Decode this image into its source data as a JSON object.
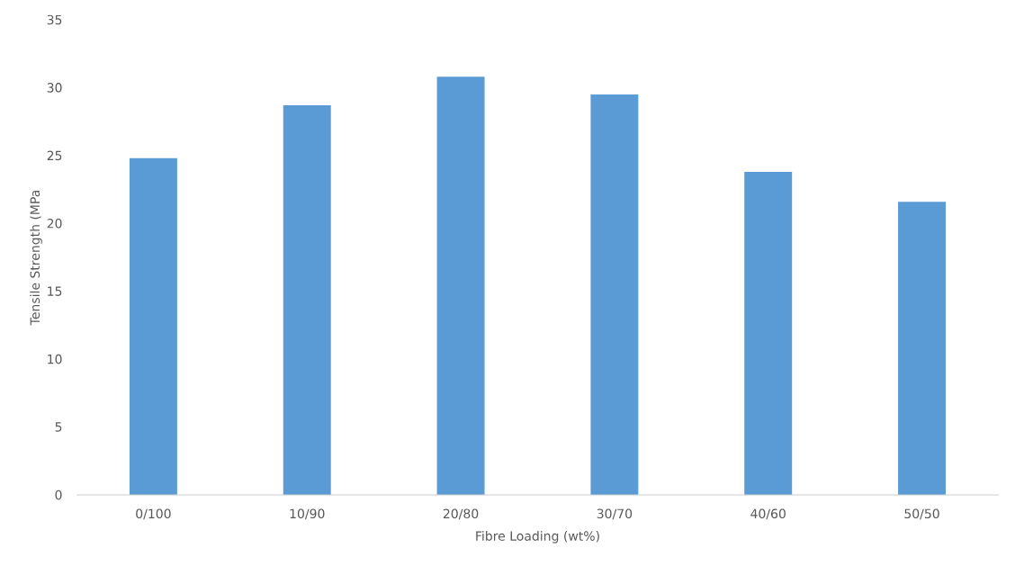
{
  "chart_data": {
    "type": "bar",
    "xlabel": "Fibre Loading (wt%)",
    "ylabel": "Tensile Strength (MPa",
    "categories": [
      "0/100",
      "10/90",
      "20/80",
      "30/70",
      "40/60",
      "50/50"
    ],
    "values": [
      24.8,
      28.7,
      30.8,
      29.5,
      23.8,
      21.6
    ],
    "color": "#5b9bd5",
    "ylim": [
      0,
      35
    ],
    "yticks": [
      0,
      5,
      10,
      15,
      20,
      25,
      30,
      35
    ],
    "grid": false
  }
}
